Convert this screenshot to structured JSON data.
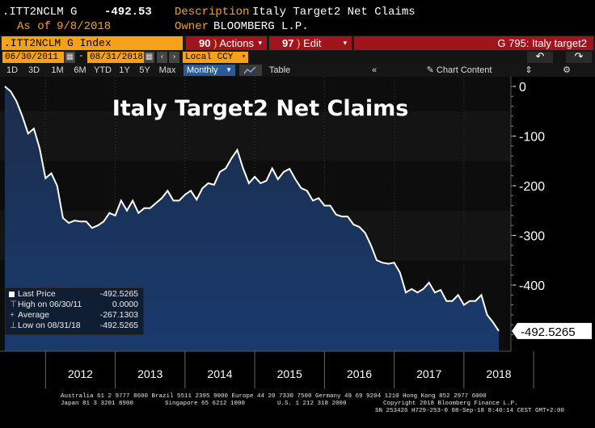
{
  "header": {
    "ticker": ".ITT2NCLM G",
    "last_value": "-492.53",
    "description_label": "Description",
    "description": "Italy Target2 Net Claims",
    "as_of_label": "As of",
    "as_of": "9/8/2018",
    "owner_label": "Owner",
    "owner": "BLOOMBERG L.P."
  },
  "toolbar": {
    "security": ".ITT2NCLM G Index",
    "actions_num": "90",
    "actions_label": "Actions",
    "edit_num": "97",
    "edit_label": "Edit",
    "page_label": "G 795: Italy target2",
    "accent": "#f7a11a",
    "red": "#a0141e"
  },
  "dates": {
    "start": "06/30/2011",
    "sep": "-",
    "end": "08/31/2018",
    "currency": "Local CCY"
  },
  "periods": {
    "items": [
      "1D",
      "3D",
      "1M",
      "6M",
      "YTD",
      "1Y",
      "5Y",
      "Max"
    ],
    "frequency": "Monthly",
    "table_label": "Table",
    "chart_content_label": "Chart Content"
  },
  "legend": {
    "rows": [
      {
        "label": "Last Price",
        "value": "-492.5265"
      },
      {
        "label": "High on 06/30/11",
        "value": "0.0000"
      },
      {
        "label": "Average",
        "value": "-267.1303"
      },
      {
        "label": "Low on 08/31/18",
        "value": "-492.5265"
      }
    ]
  },
  "footer": {
    "line1": "Australia 61 2 9777 8600 Brazil 5511 2395 9000 Europe 44 20 7330 7500 Germany 49 69 9204 1210 Hong Kong 852 2977 6000",
    "line2a": "Japan 81 3 3201 8900",
    "line2b": "Singapore 65 6212 1000",
    "line2c": "U.S. 1 212 318 2000",
    "line2d": "Copyright 2018 Bloomberg Finance L.P.",
    "line3": "SN 253426 H729-253-0 08-Sep-18  8:40:14 CEST GMT+2:00"
  },
  "chart_data": {
    "type": "area",
    "title": "Italy Target2 Net Claims",
    "xlabel": "",
    "ylabel": "",
    "frequency": "monthly",
    "start": "2011-06",
    "end": "2018-08",
    "x_ticks": [
      "2012",
      "2013",
      "2014",
      "2015",
      "2016",
      "2017",
      "2018"
    ],
    "y_ticks": [
      0,
      -100,
      -200,
      -300,
      -400
    ],
    "ylim": [
      -530,
      15
    ],
    "last_value_label": "-492.5265",
    "series": [
      {
        "name": "Italy Target2 Net Claims",
        "values": [
          0,
          -10,
          -30,
          -60,
          -95,
          -85,
          -125,
          -185,
          -175,
          -200,
          -265,
          -275,
          -270,
          -272,
          -272,
          -285,
          -280,
          -272,
          -255,
          -260,
          -230,
          -250,
          -230,
          -255,
          -245,
          -245,
          -235,
          -225,
          -210,
          -230,
          -230,
          -218,
          -210,
          -228,
          -205,
          -195,
          -198,
          -172,
          -165,
          -145,
          -128,
          -165,
          -195,
          -182,
          -195,
          -190,
          -165,
          -187,
          -172,
          -166,
          -187,
          -205,
          -210,
          -230,
          -225,
          -240,
          -240,
          -258,
          -262,
          -262,
          -278,
          -283,
          -295,
          -320,
          -350,
          -355,
          -357,
          -355,
          -375,
          -415,
          -408,
          -415,
          -408,
          -395,
          -415,
          -410,
          -432,
          -432,
          -420,
          -440,
          -432,
          -432,
          -420,
          -460,
          -475,
          -492.5
        ]
      }
    ]
  }
}
